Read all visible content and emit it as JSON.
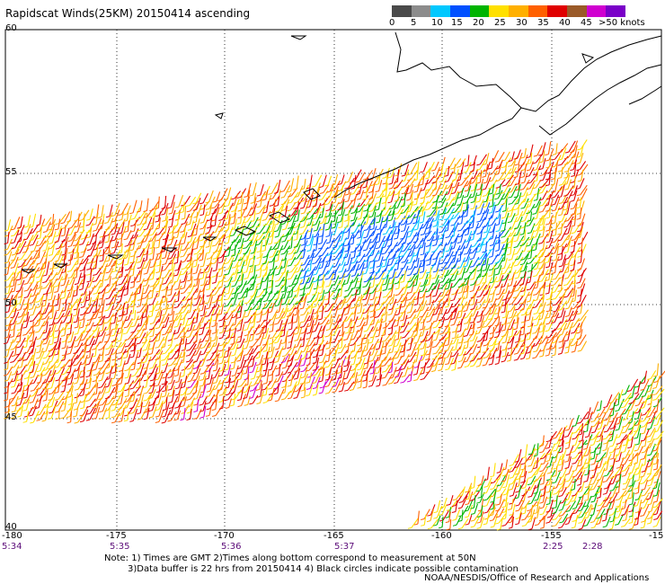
{
  "title": "Rapidscat Winds(25KM) 20150414 ascending",
  "legend": {
    "labels": [
      "0",
      "5",
      "10",
      "15",
      "20",
      "25",
      "30",
      "35",
      "40",
      "45",
      ">50 knots"
    ],
    "colors": [
      "#4a4a4a",
      "#8c8c8c",
      "#00c8ff",
      "#0050ff",
      "#00b400",
      "#ffe000",
      "#ffb000",
      "#ff6000",
      "#e00000",
      "#9a5a28",
      "#d000d0",
      "#7a00c8"
    ]
  },
  "axes": {
    "lat_labels": [
      "60",
      "55",
      "50",
      "45",
      "40"
    ],
    "lon_labels": [
      "-180",
      "-175",
      "-170",
      "-165",
      "-160",
      "-155",
      "-15"
    ]
  },
  "times": [
    "5:34",
    "5:35",
    "5:36",
    "5:37",
    "2:25",
    "2:28"
  ],
  "notes": {
    "line1": "Note: 1) Times are GMT 2)Times along bottom correspond to measurement at 50N",
    "line2": "3)Data buffer is 22 hrs from 20150414 4) Black circles indicate possible contamination"
  },
  "credit": "NOAA/NESDIS/Office of Research and Applications"
}
